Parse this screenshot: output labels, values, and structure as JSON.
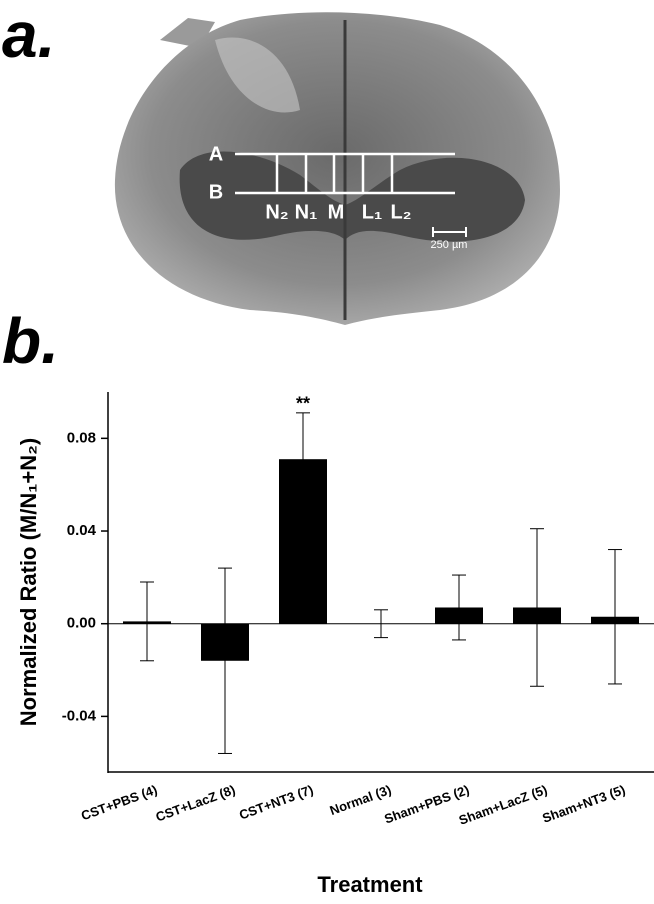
{
  "panel_a": {
    "label": "a.",
    "rows": [
      "A",
      "B"
    ],
    "regions": [
      "N₂",
      "N₁",
      "M",
      "L₁",
      "L₂"
    ],
    "scale_bar": "250 µm"
  },
  "chart_data": {
    "type": "bar",
    "panel_label": "b.",
    "xlabel": "Treatment",
    "ylabel": "Normalized Ratio (M/N₁+N₂)",
    "categories": [
      "CST+PBS (4)",
      "CST+LacZ (8)",
      "CST+NT3 (7)",
      "Normal (3)",
      "Sham+PBS (2)",
      "Sham+LacZ (5)",
      "Sham+NT3 (5)"
    ],
    "values": [
      0.001,
      -0.016,
      0.071,
      0,
      0.007,
      0.007,
      0.003
    ],
    "errors": [
      0.017,
      0.04,
      0.02,
      0.006,
      0.014,
      0.034,
      0.029
    ],
    "color": "#000000",
    "annotations": [
      {
        "category": 2,
        "text": "**"
      }
    ],
    "ylim": [
      -0.064,
      0.1
    ],
    "yticks": [
      -0.04,
      {
        "value": 0,
        "label": "0.00"
      },
      0.04,
      0.08
    ],
    "grid": false
  }
}
